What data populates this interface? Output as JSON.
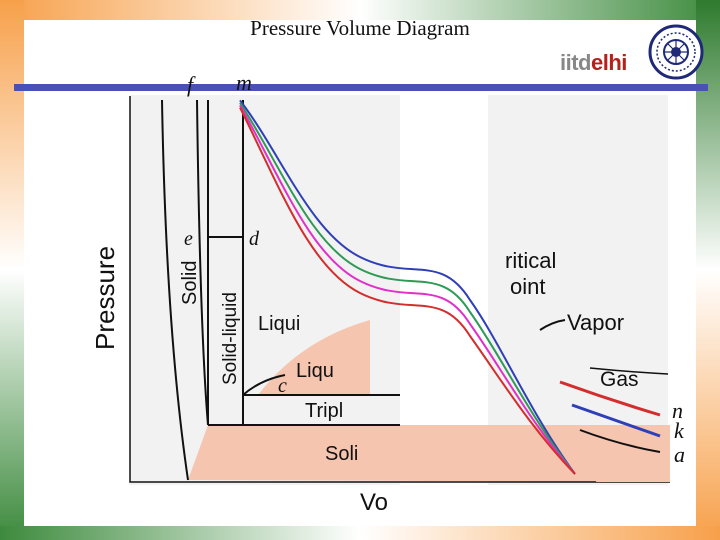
{
  "slide": {
    "title": "Pressure Volume Diagram",
    "logo_part1": "iitd",
    "logo_part2": "elhi"
  },
  "diagram": {
    "axis_y_label": "Pressure",
    "axis_x_label": "Vo",
    "region_solid": "Solid",
    "region_solid_liquid": "Solid-liquid",
    "region_liquid": "Liqui",
    "region_liquid_vapor": "Liqu",
    "region_triple": "Tripl",
    "region_solid_vapor": "Soli",
    "critical_point_line1": "ritical",
    "critical_point_line2": "oint",
    "region_vapor": "Vapor",
    "region_gas": "Gas",
    "pt_f": "f",
    "pt_m": "m",
    "pt_e": "e",
    "pt_d": "d",
    "pt_c": "c",
    "pt_n": "n",
    "pt_k": "k",
    "pt_a": "a",
    "series_colors": {
      "blue": "#2f3fb8",
      "green": "#2e9a55",
      "magenta": "#e030c8",
      "red": "#d42d2d"
    },
    "region_fill": "#f5c5b0"
  }
}
